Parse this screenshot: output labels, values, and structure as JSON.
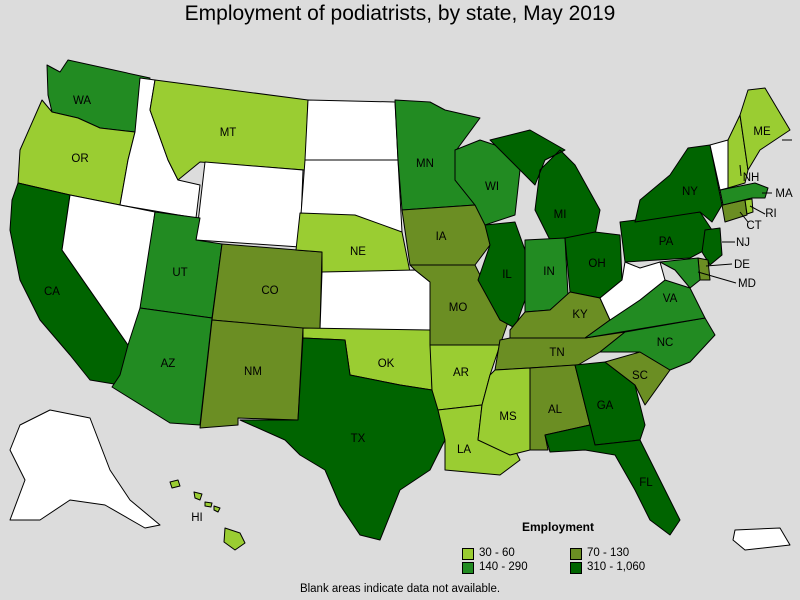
{
  "title": "Employment of podiatrists, by state, May 2019",
  "footnote": "Blank areas indicate data not available.",
  "legend": {
    "title": "Employment",
    "items": [
      {
        "label": "30 - 60",
        "color": "#9acd32"
      },
      {
        "label": "70 - 130",
        "color": "#6b8e23"
      },
      {
        "label": "140 - 290",
        "color": "#228b22"
      },
      {
        "label": "310 - 1,060",
        "color": "#006400"
      }
    ]
  },
  "colors": {
    "no_data": "#ffffff",
    "c1": "#9acd32",
    "c2": "#6b8e23",
    "c3": "#228b22",
    "c4": "#006400",
    "background": "#dcdcdc"
  },
  "states": {
    "WA": {
      "label": "WA",
      "bin": "140 - 290"
    },
    "OR": {
      "label": "OR",
      "bin": "30 - 60"
    },
    "CA": {
      "label": "CA",
      "bin": "310 - 1,060"
    },
    "ID": {
      "label": "",
      "bin": "no data"
    },
    "NV": {
      "label": "",
      "bin": "no data"
    },
    "MT": {
      "label": "MT",
      "bin": "30 - 60"
    },
    "WY": {
      "label": "",
      "bin": "no data"
    },
    "UT": {
      "label": "UT",
      "bin": "140 - 290"
    },
    "AZ": {
      "label": "AZ",
      "bin": "140 - 290"
    },
    "CO": {
      "label": "CO",
      "bin": "70 - 130"
    },
    "NM": {
      "label": "NM",
      "bin": "70 - 130"
    },
    "ND": {
      "label": "",
      "bin": "no data"
    },
    "SD": {
      "label": "",
      "bin": "no data"
    },
    "NE": {
      "label": "NE",
      "bin": "30 - 60"
    },
    "KS": {
      "label": "",
      "bin": "no data"
    },
    "OK": {
      "label": "OK",
      "bin": "30 - 60"
    },
    "TX": {
      "label": "TX",
      "bin": "310 - 1,060"
    },
    "MN": {
      "label": "MN",
      "bin": "140 - 290"
    },
    "IA": {
      "label": "IA",
      "bin": "70 - 130"
    },
    "MO": {
      "label": "MO",
      "bin": "70 - 130"
    },
    "AR": {
      "label": "AR",
      "bin": "30 - 60"
    },
    "LA": {
      "label": "LA",
      "bin": "30 - 60"
    },
    "WI": {
      "label": "WI",
      "bin": "140 - 290"
    },
    "IL": {
      "label": "IL",
      "bin": "310 - 1,060"
    },
    "MI": {
      "label": "MI",
      "bin": "310 - 1,060"
    },
    "IN": {
      "label": "IN",
      "bin": "140 - 290"
    },
    "OH": {
      "label": "OH",
      "bin": "310 - 1,060"
    },
    "KY": {
      "label": "KY",
      "bin": "70 - 130"
    },
    "TN": {
      "label": "TN",
      "bin": "70 - 130"
    },
    "MS": {
      "label": "MS",
      "bin": "30 - 60"
    },
    "AL": {
      "label": "AL",
      "bin": "70 - 130"
    },
    "GA": {
      "label": "GA",
      "bin": "310 - 1,060"
    },
    "FL": {
      "label": "FL",
      "bin": "310 - 1,060"
    },
    "SC": {
      "label": "SC",
      "bin": "70 - 130"
    },
    "NC": {
      "label": "NC",
      "bin": "140 - 290"
    },
    "VA": {
      "label": "VA",
      "bin": "140 - 290"
    },
    "WV": {
      "label": "",
      "bin": "no data"
    },
    "PA": {
      "label": "PA",
      "bin": "310 - 1,060"
    },
    "NY": {
      "label": "NY",
      "bin": "310 - 1,060"
    },
    "NJ": {
      "label": "NJ",
      "bin": "310 - 1,060"
    },
    "DE": {
      "label": "DE",
      "bin": "70 - 130"
    },
    "MD": {
      "label": "MD",
      "bin": "140 - 290"
    },
    "CT": {
      "label": "CT",
      "bin": "70 - 130"
    },
    "RI": {
      "label": "RI",
      "bin": "30 - 60"
    },
    "MA": {
      "label": "MA",
      "bin": "140 - 290"
    },
    "VT": {
      "label": "",
      "bin": "no data"
    },
    "NH": {
      "label": "NH",
      "bin": "30 - 60"
    },
    "ME": {
      "label": "ME",
      "bin": "30 - 60"
    },
    "AK": {
      "label": "",
      "bin": "no data"
    },
    "HI": {
      "label": "HI",
      "bin": "30 - 60"
    },
    "PR": {
      "label": "",
      "bin": "no data"
    }
  }
}
